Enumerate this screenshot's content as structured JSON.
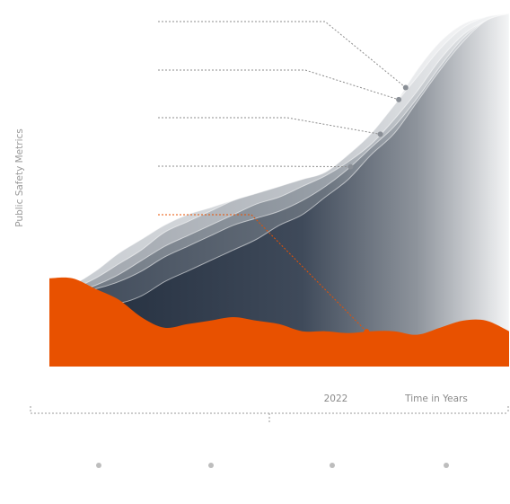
{
  "chart_data": {
    "type": "area",
    "title": "",
    "ylabel": "Public Safety Metrics",
    "xlabel": "Time in Years",
    "x_tick_labels": [
      "2022"
    ],
    "x": [
      0,
      1,
      2,
      3,
      4,
      5,
      6,
      7,
      8,
      9,
      10,
      11,
      12,
      13,
      14,
      15,
      16,
      17,
      18,
      19,
      20
    ],
    "ylim": [
      0,
      100
    ],
    "grid": false,
    "legend": "none",
    "colors": {
      "accent": "#e85100",
      "dark_series": "#2e3a4c",
      "light_series": "#cfd2d7",
      "leader_lines": "#8d8d8d"
    },
    "series": [
      {
        "color": "#e85100",
        "values": [
          25,
          25,
          22,
          19,
          14,
          11,
          12,
          13,
          14,
          13,
          12,
          10,
          10,
          9.5,
          10,
          10,
          9,
          11,
          13,
          13,
          10
        ]
      },
      {
        "color": "#2e3a4c",
        "values": [
          20,
          21,
          19,
          18,
          20,
          24,
          27,
          30,
          33,
          36,
          40,
          43,
          48,
          53,
          60,
          66,
          75,
          84,
          92,
          98,
          100
        ]
      },
      {
        "color": "#505b69",
        "values": [
          20,
          21,
          22,
          24,
          27,
          31,
          34,
          37,
          40,
          42,
          44,
          47,
          51,
          56,
          62,
          68,
          76,
          85,
          93,
          98,
          100
        ]
      },
      {
        "color": "#7c838d",
        "values": [
          20,
          21,
          23,
          26,
          30,
          34,
          37,
          40,
          43,
          46,
          48,
          51,
          54,
          58,
          63,
          70,
          78,
          87,
          94,
          98,
          100
        ]
      },
      {
        "color": "#a8acb3",
        "values": [
          20,
          22,
          25,
          29,
          33,
          38,
          41,
          44,
          47,
          49,
          51,
          53,
          55,
          60,
          66,
          74,
          82,
          90,
          96,
          99,
          100
        ]
      },
      {
        "color": "#cfd2d7",
        "values": [
          20,
          23,
          27,
          32,
          36,
          40,
          43,
          45,
          47,
          48,
          49,
          50,
          52,
          57,
          65,
          74,
          84,
          92,
          97,
          99,
          100
        ]
      }
    ]
  }
}
